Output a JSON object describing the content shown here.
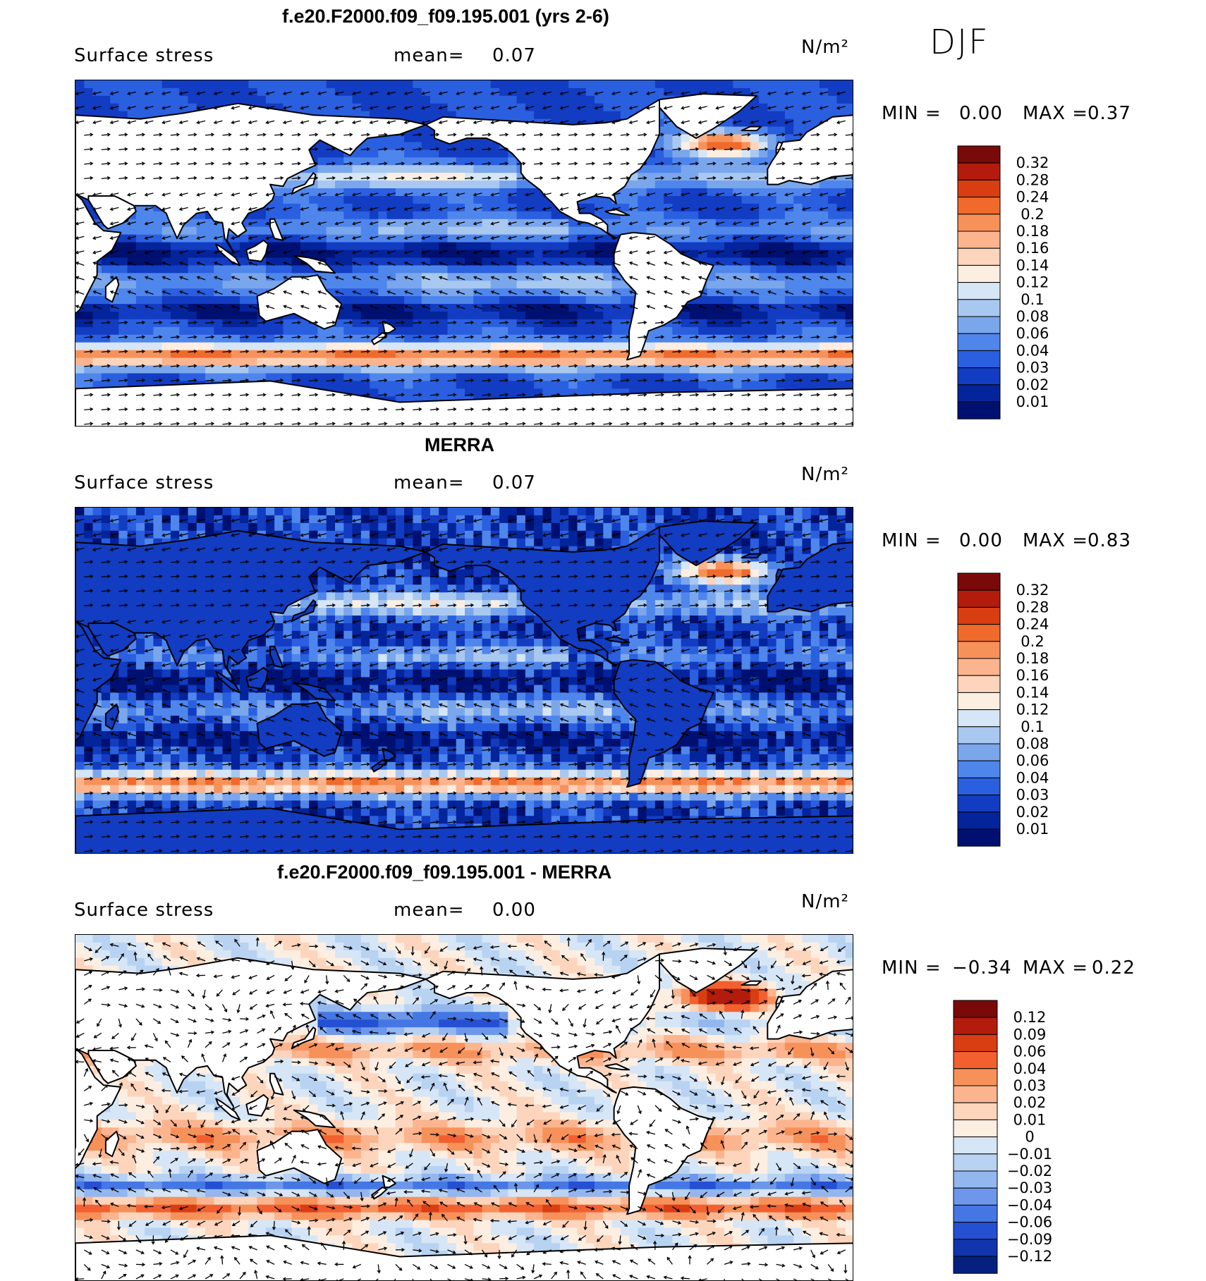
{
  "season": "DJF",
  "panels": [
    {
      "title": "f.e20.F2000.f09_f09.195.001 (yrs 2-6)",
      "variable": "Surface stress",
      "mean_label": "mean=",
      "mean_value": "0.07",
      "units": "N/m²",
      "min_label": "MIN =",
      "min_value": "0.00",
      "max_label": "MAX =",
      "max_value": "0.37",
      "colorbar": [
        "0.32",
        "0.28",
        "0.24",
        "0.2",
        "0.18",
        "0.16",
        "0.14",
        "0.12",
        "0.1",
        "0.08",
        "0.06",
        "0.04",
        "0.03",
        "0.02",
        "0.01"
      ]
    },
    {
      "title": "MERRA",
      "variable": "Surface stress",
      "mean_label": "mean=",
      "mean_value": "0.07",
      "units": "N/m²",
      "min_label": "MIN =",
      "min_value": "0.00",
      "max_label": "MAX =",
      "max_value": "0.83",
      "colorbar": [
        "0.32",
        "0.28",
        "0.24",
        "0.2",
        "0.18",
        "0.16",
        "0.14",
        "0.12",
        "0.1",
        "0.08",
        "0.06",
        "0.04",
        "0.03",
        "0.02",
        "0.01"
      ]
    },
    {
      "title": "f.e20.F2000.f09_f09.195.001 - MERRA",
      "variable": "Surface stress",
      "mean_label": "mean=",
      "mean_value": "0.00",
      "units": "N/m²",
      "min_label": "MIN =",
      "min_value": "−0.34",
      "max_label": "MAX =",
      "max_value": "0.22",
      "colorbar": [
        "0.12",
        "0.09",
        "0.06",
        "0.04",
        "0.03",
        "0.02",
        "0.01",
        "0",
        "−0.01",
        "−0.02",
        "−0.03",
        "−0.04",
        "−0.06",
        "−0.09",
        "−0.12"
      ]
    }
  ],
  "colors": {
    "abs_scale": [
      "#7a0a0a",
      "#b31c0c",
      "#d93d12",
      "#f06a2c",
      "#f7915a",
      "#fbb48e",
      "#fdd5bc",
      "#fdeee2",
      "#d6e6f6",
      "#a8c8f0",
      "#7aa6ec",
      "#4f86ec",
      "#2a5fdf",
      "#123cc1",
      "#04249b",
      "#001070"
    ],
    "diff_scale": [
      "#7a0a0a",
      "#b31c0c",
      "#d93d12",
      "#f26030",
      "#f7915a",
      "#fbb48e",
      "#fdd5bc",
      "#fdeee2",
      "#d6e6f6",
      "#b8d2f2",
      "#93b6ee",
      "#6d97ea",
      "#4577e4",
      "#2550d2",
      "#1035ad",
      "#05207e"
    ],
    "land": "#ffffff",
    "coast": "#000000"
  }
}
